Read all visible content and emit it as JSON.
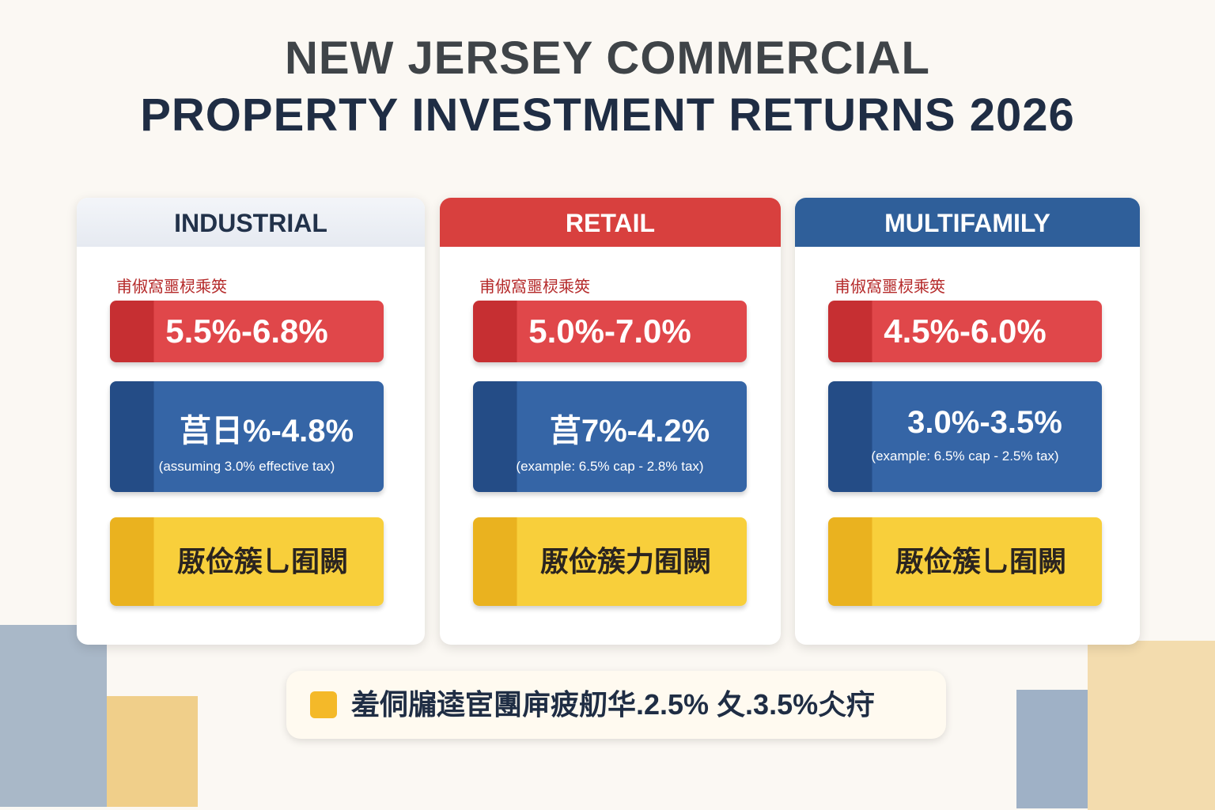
{
  "title": [
    "NEW JERSEY COMMERCIAL",
    "PROPERTY INVESTMENT RETURNS 2026"
  ],
  "cards": [
    {
      "name": "INDUSTRIAL",
      "label": "甫俶窩噩棂乘筴",
      "cap": "5.5%-6.8%",
      "net": "莒日%-4.8%",
      "note": "(assuming 3.0% effective tax)",
      "tag": "厫俭簇乚囿闕"
    },
    {
      "name": "RETAIL",
      "label": "甫俶窩噩棂乘筴",
      "cap": "5.0%-7.0%",
      "net": "莒7%-4.2%",
      "note": "(example: 6.5% cap - 2.8% tax)",
      "tag": "厫俭簇力囿闕"
    },
    {
      "name": "MULTIFAMILY",
      "label": "甫俶窩噩棂乘筴",
      "cap": "4.5%-6.0%",
      "net": "3.0%-3.5%",
      "note": "(example: 6.5% cap - 2.5% tax)",
      "tag": "厫俭簇乚囿闕"
    }
  ],
  "footer": "羞侗牖逵宦團庘疲舠华.2.5% 夂.3.5%仌疛"
}
